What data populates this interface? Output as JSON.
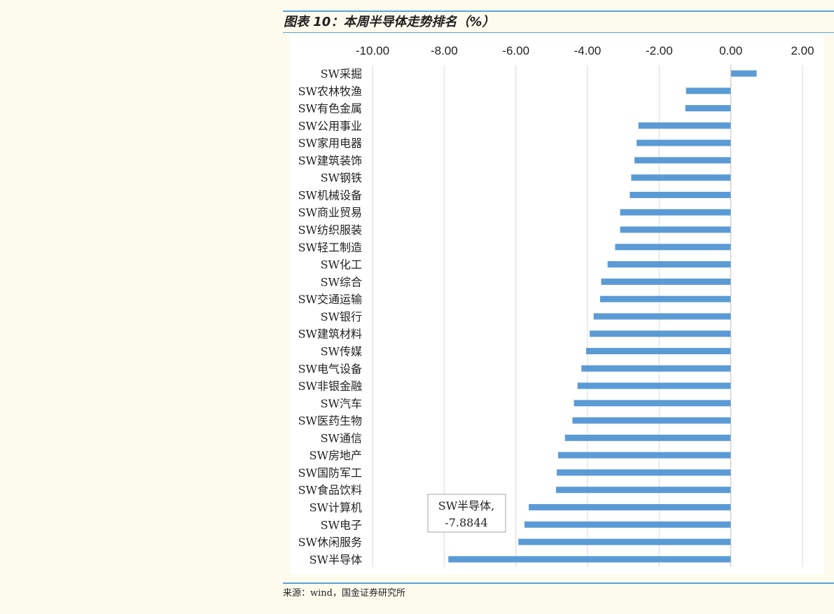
{
  "figure": {
    "title": "图表 10：本周半导体走势排名（%）",
    "source": "来源：wind，国金证券研究所"
  },
  "colors": {
    "bar": "#5b9bd5",
    "grid": "#d9d9d9",
    "rule": "#5aa4d8",
    "background": "#fdfbee"
  },
  "chart_data": {
    "type": "bar",
    "orientation": "horizontal",
    "categories": [
      "SW采掘",
      "SW农林牧渔",
      "SW有色金属",
      "SW公用事业",
      "SW家用电器",
      "SW建筑装饰",
      "SW钢铁",
      "SW机械设备",
      "SW商业贸易",
      "SW纺织服装",
      "SW轻工制造",
      "SW化工",
      "SW综合",
      "SW交通运输",
      "SW银行",
      "SW建筑材料",
      "SW传媒",
      "SW电气设备",
      "SW非银金融",
      "SW汽车",
      "SW医药生物",
      "SW通信",
      "SW房地产",
      "SW国防军工",
      "SW食品饮料",
      "SW计算机",
      "SW电子",
      "SW休闲服务",
      "SW半导体"
    ],
    "values": [
      0.72,
      -1.25,
      -1.27,
      -2.58,
      -2.63,
      -2.69,
      -2.78,
      -2.82,
      -3.09,
      -3.09,
      -3.23,
      -3.44,
      -3.62,
      -3.65,
      -3.83,
      -3.94,
      -4.04,
      -4.17,
      -4.28,
      -4.38,
      -4.42,
      -4.63,
      -4.82,
      -4.86,
      -4.88,
      -5.64,
      -5.76,
      -5.93,
      -7.8844
    ],
    "xlim": [
      -10,
      2
    ],
    "ticks": [
      -10,
      -8,
      -6,
      -4,
      -2,
      0,
      2
    ],
    "tick_labels": [
      "-10.00",
      "-8.00",
      "-6.00",
      "-4.00",
      "-2.00",
      "0.00",
      "2.00"
    ],
    "xaxis_position": "top",
    "grid": true,
    "annotation": {
      "category": "SW半导体",
      "line1": "SW半导体,",
      "line2": "-7.8844"
    }
  }
}
